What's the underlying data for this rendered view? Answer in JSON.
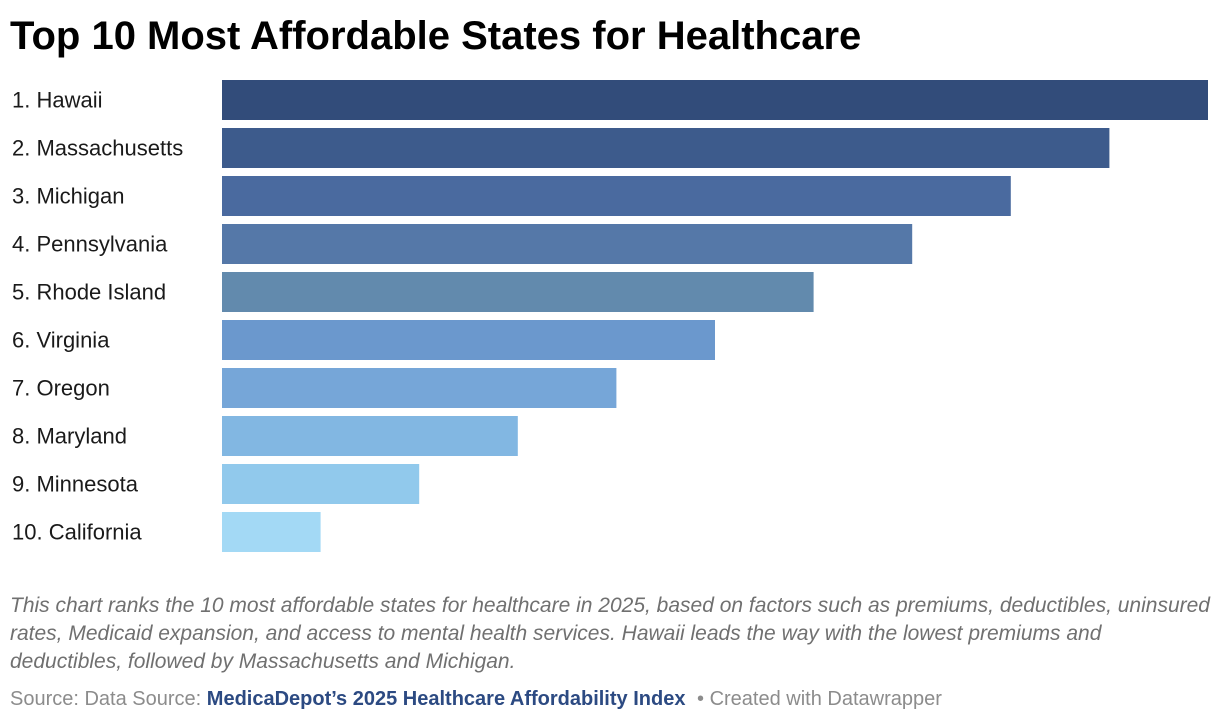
{
  "title": "Top 10 Most Affordable States for Healthcare",
  "chart_data": {
    "type": "bar",
    "orientation": "horizontal",
    "categories": [
      "1. Hawaii",
      "2. Massachusetts",
      "3. Michigan",
      "4. Pennsylvania",
      "5. Rhode Island",
      "6. Virginia",
      "7. Oregon",
      "8. Maryland",
      "9. Minnesota",
      "10. California"
    ],
    "values": [
      10,
      9,
      8,
      7,
      6,
      5,
      4,
      3,
      2,
      1
    ],
    "colors": [
      "#324c7a",
      "#3d5b8c",
      "#4a6a9f",
      "#5578a8",
      "#628aad",
      "#6b98cd",
      "#76a6d8",
      "#82b7e2",
      "#91c9ec",
      "#a3d9f5"
    ],
    "xlim": [
      0,
      10
    ],
    "grid": false,
    "legend": "none"
  },
  "notes": "This chart ranks the 10 most affordable states for healthcare in 2025, based on factors such as premiums, deductibles, uninsured rates, Medicaid expansion, and access to mental health services. Hawaii leads the way with the lowest premiums and deductibles, followed by Massachusetts and Michigan.",
  "footer": {
    "source_prefix": "Source: Data Source:",
    "source_link": "MedicaDepot’s 2025 Healthcare Affordability Index",
    "credit": "• Created with Datawrapper"
  }
}
